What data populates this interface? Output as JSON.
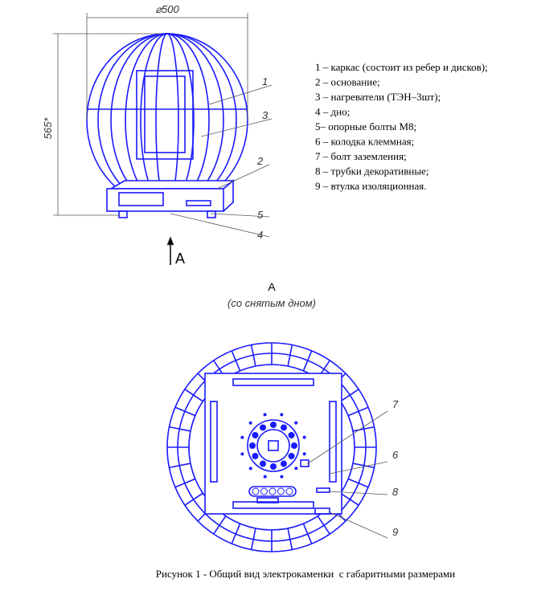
{
  "dimensions": {
    "diameter": "⌀500",
    "height": "565*"
  },
  "front_view": {
    "callouts": [
      "1",
      "3",
      "2",
      "5",
      "4"
    ],
    "view_arrow": "A"
  },
  "legend": [
    "1 – каркас (состоит из ребер и дисков);",
    "2 – основание;",
    "3 – нагреватели (ТЭН–3шт);",
    "4 – дно;",
    "5– опорные болты М8;",
    "6 – колодка клеммная;",
    "7 – болт заземления;",
    "8 – трубки декоративные;",
    "9 – втулка изоляционная."
  ],
  "bottom_view": {
    "title": "A",
    "subtitle": "(со снятым дном)",
    "callouts": [
      "7",
      "6",
      "8",
      "9"
    ]
  },
  "caption": "Рисунок 1 - Общий вид электрокаменки  с габаритными размерами"
}
